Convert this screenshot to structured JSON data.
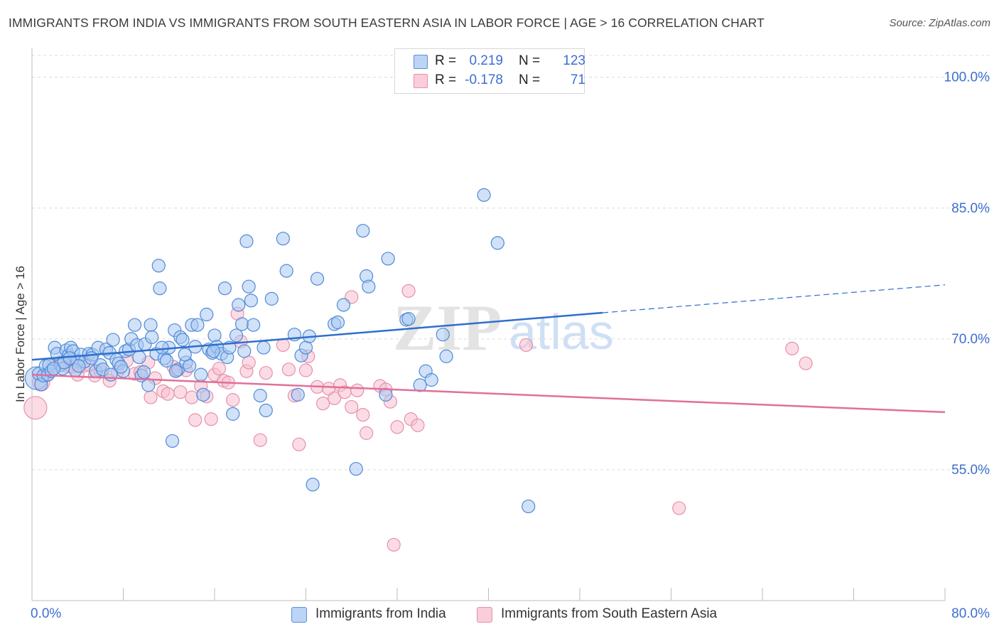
{
  "title": "IMMIGRANTS FROM INDIA VS IMMIGRANTS FROM SOUTH EASTERN ASIA IN LABOR FORCE | AGE > 16 CORRELATION CHART",
  "source": "Source: ZipAtlas.com",
  "watermark": {
    "zip": "ZIP",
    "atlas": "atlas"
  },
  "colors": {
    "india_fill": "#aac8f2",
    "india_stroke": "#4f8ad6",
    "india_line": "#2e6fcc",
    "sea_fill": "#f7c0cf",
    "sea_stroke": "#e690ab",
    "sea_line": "#e0709a",
    "axis_label": "#3c6fcf",
    "grid": "#dcdcdc"
  },
  "legend_top": {
    "rows": [
      {
        "r_label": "R =",
        "r_value": "0.219",
        "n_label": "N =",
        "n_value": "123"
      },
      {
        "r_label": "R =",
        "r_value": "-0.178",
        "n_label": "N =",
        "n_value": "71"
      }
    ]
  },
  "legend_bottom": {
    "items": [
      {
        "label": "Immigrants from India"
      },
      {
        "label": "Immigrants from South Eastern Asia"
      }
    ]
  },
  "chart_data": {
    "type": "scatter",
    "title": "IMMIGRANTS FROM INDIA VS IMMIGRANTS FROM SOUTH EASTERN ASIA IN LABOR FORCE | AGE > 16 CORRELATION CHART",
    "xlabel": "",
    "ylabel": "In Labor Force | Age > 16",
    "xlim": [
      0,
      80
    ],
    "ylim": [
      40,
      102.5
    ],
    "x_tick_labels": [
      "0.0%",
      "80.0%"
    ],
    "y_ticks": [
      55,
      70,
      85,
      100
    ],
    "y_tick_labels": [
      "55.0%",
      "70.0%",
      "85.0%",
      "100.0%"
    ],
    "grid": true,
    "legend_placement": "top-center",
    "series": [
      {
        "name": "Immigrants from India",
        "r": 0.219,
        "n": 123,
        "trend": {
          "x0": 0,
          "y0": 67.6,
          "x1": 50,
          "y1": 73.0,
          "dashed_to_x": 80,
          "dashed_to_y": 76.2
        },
        "points": [
          [
            0.4,
            65.5,
            16
          ],
          [
            0.6,
            66.0,
            9
          ],
          [
            0.8,
            64.8,
            9
          ],
          [
            1.0,
            65.8,
            9
          ],
          [
            1.2,
            66.9,
            9
          ],
          [
            1.4,
            65.9,
            9
          ],
          [
            1.5,
            67.0,
            9
          ],
          [
            1.7,
            66.3,
            9
          ],
          [
            2.0,
            69.0,
            9
          ],
          [
            2.2,
            68.3,
            9
          ],
          [
            2.5,
            67.0,
            9
          ],
          [
            2.7,
            66.6,
            9
          ],
          [
            3.0,
            68.7,
            9
          ],
          [
            3.2,
            68.1,
            9
          ],
          [
            3.4,
            69.0,
            9
          ],
          [
            3.6,
            68.6,
            9
          ],
          [
            4.0,
            67.5,
            9
          ],
          [
            4.3,
            68.2,
            9
          ],
          [
            4.6,
            67.4,
            9
          ],
          [
            5.0,
            68.3,
            9
          ],
          [
            5.3,
            68.2,
            9
          ],
          [
            5.6,
            66.3,
            9
          ],
          [
            5.8,
            69.0,
            9
          ],
          [
            6.0,
            67.0,
            9
          ],
          [
            6.2,
            66.5,
            9
          ],
          [
            6.5,
            68.8,
            9
          ],
          [
            6.8,
            68.4,
            9
          ],
          [
            7.1,
            69.9,
            9
          ],
          [
            7.4,
            67.6,
            9
          ],
          [
            7.6,
            67.2,
            9
          ],
          [
            8.0,
            66.3,
            9
          ],
          [
            8.2,
            68.6,
            9
          ],
          [
            8.5,
            68.8,
            9
          ],
          [
            8.7,
            70.0,
            9
          ],
          [
            9.0,
            71.6,
            9
          ],
          [
            9.2,
            69.3,
            9
          ],
          [
            9.4,
            67.9,
            9
          ],
          [
            9.6,
            65.8,
            9
          ],
          [
            9.9,
            69.4,
            9
          ],
          [
            10.2,
            64.7,
            9
          ],
          [
            10.4,
            71.6,
            9
          ],
          [
            10.5,
            70.2,
            9
          ],
          [
            10.9,
            68.3,
            9
          ],
          [
            11.1,
            78.4,
            9
          ],
          [
            11.2,
            75.8,
            9
          ],
          [
            11.6,
            67.8,
            9
          ],
          [
            11.8,
            67.5,
            9
          ],
          [
            12.0,
            69.0,
            9
          ],
          [
            12.3,
            58.3,
            9
          ],
          [
            12.5,
            71.0,
            9
          ],
          [
            12.8,
            66.5,
            9
          ],
          [
            13.0,
            70.2,
            9
          ],
          [
            13.2,
            69.9,
            9
          ],
          [
            13.5,
            67.3,
            9
          ],
          [
            13.8,
            66.9,
            9
          ],
          [
            14.0,
            71.6,
            9
          ],
          [
            14.3,
            69.1,
            9
          ],
          [
            14.5,
            71.6,
            9
          ],
          [
            14.8,
            65.9,
            9
          ],
          [
            15.0,
            63.6,
            9
          ],
          [
            15.3,
            72.8,
            9
          ],
          [
            15.5,
            68.8,
            9
          ],
          [
            15.8,
            68.4,
            9
          ],
          [
            16.0,
            70.4,
            9
          ],
          [
            16.2,
            69.1,
            9
          ],
          [
            16.6,
            68.3,
            9
          ],
          [
            16.9,
            75.8,
            9
          ],
          [
            17.1,
            67.9,
            9
          ],
          [
            17.3,
            69.0,
            9
          ],
          [
            17.6,
            61.4,
            9
          ],
          [
            17.9,
            70.4,
            9
          ],
          [
            18.1,
            73.9,
            9
          ],
          [
            18.4,
            71.7,
            9
          ],
          [
            18.6,
            68.6,
            9
          ],
          [
            18.8,
            81.2,
            9
          ],
          [
            19.0,
            76.0,
            9
          ],
          [
            19.2,
            74.4,
            9
          ],
          [
            19.4,
            71.6,
            9
          ],
          [
            20.0,
            63.5,
            9
          ],
          [
            20.3,
            69.0,
            9
          ],
          [
            20.5,
            61.8,
            9
          ],
          [
            21.0,
            74.6,
            9
          ],
          [
            22.0,
            81.5,
            9
          ],
          [
            22.3,
            77.8,
            9
          ],
          [
            23.0,
            70.5,
            9
          ],
          [
            23.3,
            63.6,
            9
          ],
          [
            23.6,
            68.1,
            9
          ],
          [
            24.0,
            69.0,
            9
          ],
          [
            24.3,
            70.3,
            9
          ],
          [
            24.6,
            53.3,
            9
          ],
          [
            25.0,
            76.9,
            9
          ],
          [
            26.5,
            71.7,
            9
          ],
          [
            26.8,
            71.9,
            9
          ],
          [
            27.3,
            73.9,
            9
          ],
          [
            28.4,
            55.1,
            9
          ],
          [
            29.0,
            82.4,
            9
          ],
          [
            29.3,
            77.2,
            9
          ],
          [
            29.5,
            76.0,
            9
          ],
          [
            31.0,
            63.6,
            9
          ],
          [
            31.2,
            79.2,
            9
          ],
          [
            32.8,
            72.2,
            9
          ],
          [
            33.0,
            72.3,
            9
          ],
          [
            34.0,
            64.7,
            9
          ],
          [
            34.5,
            66.3,
            9
          ],
          [
            35.0,
            65.3,
            9
          ],
          [
            36.0,
            70.5,
            9
          ],
          [
            36.3,
            68.0,
            9
          ],
          [
            39.6,
            86.5,
            9
          ],
          [
            40.8,
            81.0,
            9
          ],
          [
            43.5,
            50.8,
            9
          ],
          [
            3.8,
            66.4,
            9
          ],
          [
            6.9,
            65.9,
            9
          ],
          [
            11.4,
            69.0,
            9
          ],
          [
            13.4,
            68.2,
            9
          ],
          [
            9.8,
            66.2,
            9
          ],
          [
            5.2,
            67.8,
            9
          ],
          [
            7.8,
            66.8,
            9
          ],
          [
            2.8,
            67.3,
            9
          ],
          [
            4.1,
            66.9,
            9
          ],
          [
            1.9,
            66.6,
            9
          ],
          [
            12.6,
            66.3,
            9
          ],
          [
            15.9,
            68.6,
            9
          ],
          [
            3.3,
            67.8,
            9
          ]
        ]
      },
      {
        "name": "Immigrants from South Eastern Asia",
        "r": -0.178,
        "n": 71,
        "trend": {
          "x0": 0,
          "y0": 65.9,
          "x1": 80,
          "y1": 61.6
        },
        "points": [
          [
            0.3,
            62.1,
            16
          ],
          [
            0.8,
            65.0,
            12
          ],
          [
            1.2,
            65.8,
            9
          ],
          [
            1.8,
            66.9,
            9
          ],
          [
            2.5,
            67.3,
            9
          ],
          [
            3.0,
            66.9,
            9
          ],
          [
            3.5,
            66.8,
            9
          ],
          [
            4.0,
            65.9,
            9
          ],
          [
            4.5,
            66.9,
            9
          ],
          [
            5.0,
            67.0,
            9
          ],
          [
            5.5,
            65.8,
            9
          ],
          [
            6.0,
            66.3,
            9
          ],
          [
            6.8,
            65.2,
            9
          ],
          [
            7.5,
            66.2,
            9
          ],
          [
            8.3,
            67.5,
            9
          ],
          [
            9.0,
            66.0,
            9
          ],
          [
            9.5,
            66.2,
            9
          ],
          [
            10.2,
            67.3,
            9
          ],
          [
            10.4,
            63.3,
            9
          ],
          [
            10.8,
            65.5,
            9
          ],
          [
            11.5,
            64.0,
            9
          ],
          [
            11.9,
            63.7,
            9
          ],
          [
            12.4,
            66.8,
            9
          ],
          [
            12.7,
            66.4,
            9
          ],
          [
            13.0,
            63.9,
            9
          ],
          [
            13.5,
            66.4,
            9
          ],
          [
            14.0,
            63.3,
            9
          ],
          [
            14.3,
            60.7,
            9
          ],
          [
            14.8,
            64.6,
            9
          ],
          [
            15.3,
            63.4,
            9
          ],
          [
            15.7,
            60.8,
            9
          ],
          [
            16.0,
            65.9,
            9
          ],
          [
            16.4,
            66.6,
            9
          ],
          [
            16.8,
            65.2,
            9
          ],
          [
            17.2,
            65.0,
            9
          ],
          [
            17.6,
            63.0,
            9
          ],
          [
            18.0,
            72.9,
            9
          ],
          [
            18.3,
            69.7,
            9
          ],
          [
            18.8,
            66.3,
            9
          ],
          [
            19.0,
            67.3,
            9
          ],
          [
            20.0,
            58.4,
            9
          ],
          [
            20.5,
            66.1,
            9
          ],
          [
            22.0,
            69.3,
            9
          ],
          [
            22.5,
            66.5,
            9
          ],
          [
            23.0,
            63.5,
            9
          ],
          [
            23.4,
            57.9,
            9
          ],
          [
            24.0,
            66.4,
            9
          ],
          [
            24.2,
            68.0,
            9
          ],
          [
            25.0,
            64.5,
            9
          ],
          [
            25.5,
            62.6,
            9
          ],
          [
            26.0,
            64.3,
            9
          ],
          [
            26.5,
            63.2,
            9
          ],
          [
            27.0,
            64.7,
            9
          ],
          [
            27.4,
            63.9,
            9
          ],
          [
            28.0,
            62.2,
            9
          ],
          [
            28.5,
            64.1,
            9
          ],
          [
            29.0,
            61.3,
            9
          ],
          [
            29.3,
            59.2,
            9
          ],
          [
            30.5,
            64.6,
            9
          ],
          [
            31.0,
            64.2,
            9
          ],
          [
            31.4,
            62.8,
            9
          ],
          [
            32.0,
            59.9,
            9
          ],
          [
            31.7,
            46.4,
            9
          ],
          [
            33.0,
            75.5,
            9
          ],
          [
            33.2,
            60.8,
            9
          ],
          [
            33.8,
            60.1,
            9
          ],
          [
            43.3,
            69.3,
            9
          ],
          [
            56.7,
            50.6,
            9
          ],
          [
            66.6,
            68.9,
            9
          ],
          [
            67.8,
            67.2,
            9
          ],
          [
            28.0,
            74.8,
            9
          ]
        ]
      }
    ]
  }
}
